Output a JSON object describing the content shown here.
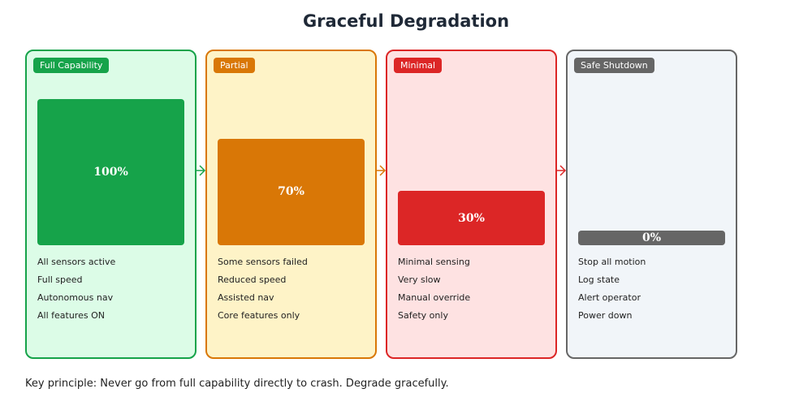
{
  "title": "Graceful Degradation",
  "stages": [
    {
      "label": "Full Capability",
      "value": 100,
      "value_label": "100%",
      "color": "#16a34a",
      "bg": "#dcfce7",
      "items": [
        "All sensors active",
        "Full speed",
        "Autonomous nav",
        "All features ON"
      ]
    },
    {
      "label": "Partial",
      "value": 70,
      "value_label": "70%",
      "color": "#d97706",
      "bg": "#fef3c7",
      "items": [
        "Some sensors failed",
        "Reduced speed",
        "Assisted nav",
        "Core features only"
      ]
    },
    {
      "label": "Minimal",
      "value": 30,
      "value_label": "30%",
      "color": "#dc2626",
      "bg": "#fee2e2",
      "items": [
        "Minimal sensing",
        "Very slow",
        "Manual override",
        "Safety only"
      ]
    },
    {
      "label": "Safe Shutdown",
      "value": 0,
      "value_label": "0%",
      "color": "#666666",
      "bg": "#f1f5f9",
      "items": [
        "Stop all motion",
        "Log state",
        "Alert operator",
        "Power down"
      ]
    }
  ],
  "footer": "Key principle: Never go from full capability directly to crash. Degrade gracefully."
}
